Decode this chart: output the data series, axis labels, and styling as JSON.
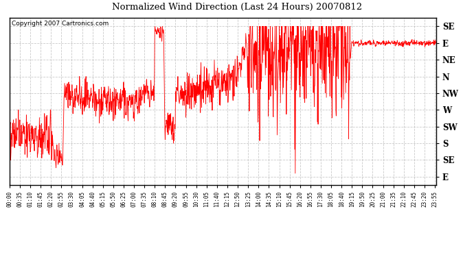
{
  "title": "Normalized Wind Direction (Last 24 Hours) 20070812",
  "copyright_text": "Copyright 2007 Cartronics.com",
  "line_color": "#FF0000",
  "background_color": "#FFFFFF",
  "grid_color": "#BBBBBB",
  "ytick_labels": [
    "SE",
    "E",
    "NE",
    "N",
    "NW",
    "W",
    "SW",
    "S",
    "SE",
    "E"
  ],
  "ytick_values": [
    9,
    8,
    7,
    6,
    5,
    4,
    3,
    2,
    1,
    0
  ],
  "ylim": [
    -0.5,
    9.5
  ],
  "time_labels": [
    "00:00",
    "00:35",
    "01:10",
    "01:45",
    "02:20",
    "02:55",
    "03:30",
    "04:05",
    "04:40",
    "05:15",
    "05:50",
    "06:25",
    "07:00",
    "07:35",
    "08:10",
    "08:45",
    "09:20",
    "09:55",
    "10:30",
    "11:05",
    "11:40",
    "12:15",
    "12:50",
    "13:25",
    "14:00",
    "14:35",
    "15:10",
    "15:45",
    "16:20",
    "16:55",
    "17:30",
    "18:05",
    "18:40",
    "19:15",
    "19:50",
    "20:25",
    "21:00",
    "21:35",
    "22:10",
    "22:45",
    "23:20",
    "23:55"
  ],
  "seed": 42
}
